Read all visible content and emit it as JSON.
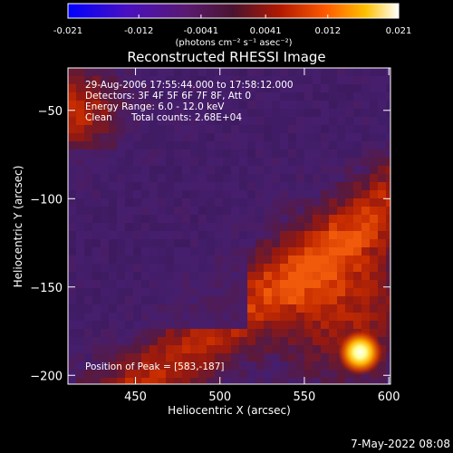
{
  "colorbar": {
    "ticks": [
      "-0.021",
      "-0.012",
      "-0.0041",
      "0.0041",
      "0.012",
      "0.021"
    ],
    "unit_label": "(photons cm⁻² s⁻¹ asec⁻²)",
    "range": [
      -0.021,
      0.021
    ]
  },
  "chart_data": {
    "type": "heatmap",
    "title": "Reconstructed RHESSI Image",
    "xlabel": "Heliocentric X (arcsec)",
    "ylabel": "Heliocentric Y (arcsec)",
    "xlim": [
      410,
      601
    ],
    "ylim": [
      -205,
      -26
    ],
    "x_ticks": [
      450,
      500,
      550,
      600
    ],
    "y_ticks": [
      -50,
      -100,
      -150,
      -200
    ],
    "annotations": [
      "29-Aug-2006 17:55:44.000 to 17:58:12.000",
      "Detectors: 3F 4F 5F 6F 7F 8F, Att 0",
      "Energy Range: 6.0 - 12.0 keV",
      "Clean",
      "Total counts: 2.68E+04"
    ],
    "peak_label": "Position of Peak = [583,-187]",
    "peak": [
      583,
      -187
    ],
    "colormap": [
      "#0000ff",
      "#4a0fa0",
      "#2a1a55",
      "#5a2a20",
      "#b02500",
      "#ff6600",
      "#ffd000",
      "#ffffff"
    ]
  },
  "footer": {
    "date": "7-May-2022 08:08"
  }
}
